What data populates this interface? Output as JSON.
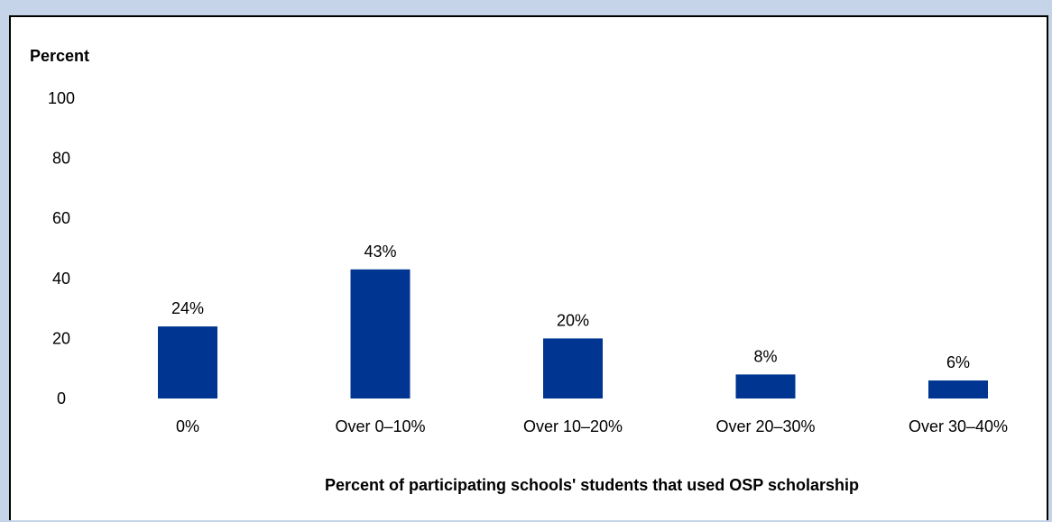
{
  "chart_data": {
    "type": "bar",
    "title": "",
    "ylabel": "Percent",
    "xlabel": "Percent of participating schools' students that used OSP scholarship",
    "categories": [
      "0%",
      "Over 0–10%",
      "Over 10–20%",
      "Over 20–30%",
      "Over 30–40%"
    ],
    "values": [
      24,
      43,
      20,
      8,
      6
    ],
    "data_labels": [
      "24%",
      "43%",
      "20%",
      "8%",
      "6%"
    ],
    "yticks": [
      "0",
      "20",
      "40",
      "60",
      "80",
      "100"
    ],
    "ylim": [
      0,
      100
    ],
    "grid": false,
    "legend": "none",
    "bar_color": "#003591"
  },
  "colors": {
    "background": "#c5d4e8",
    "panel": "#ffffff",
    "bar": "#003591"
  }
}
